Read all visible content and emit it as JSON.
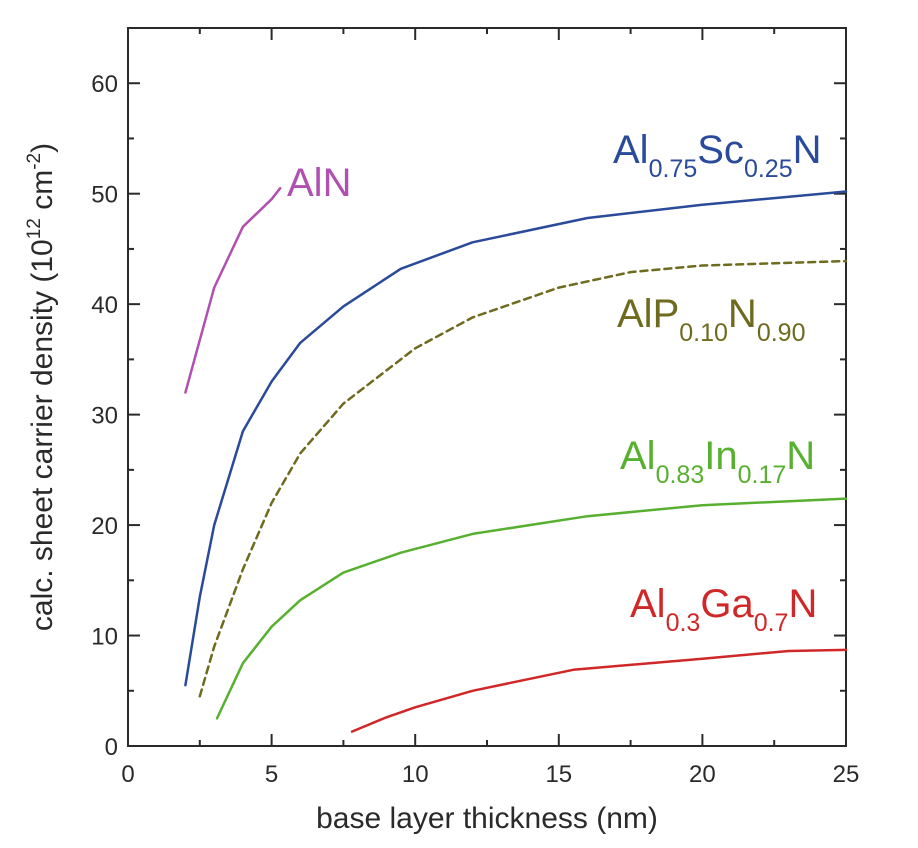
{
  "chart_data": {
    "type": "line",
    "xlabel": "base layer thickness  (nm)",
    "ylabel": {
      "text": "calc. sheet carrier density  (10",
      "exponent": "12",
      "unit": " cm",
      "unit_exponent": "-2",
      "close": ")"
    },
    "xlim": [
      0,
      25
    ],
    "ylim": [
      0,
      65
    ],
    "xticks": [
      "0",
      "5",
      "10",
      "15",
      "20",
      "25"
    ],
    "yticks": [
      "0",
      "10",
      "20",
      "30",
      "40",
      "50",
      "60"
    ],
    "grid": false,
    "legend": "inline labels",
    "series": [
      {
        "name": "AlN",
        "label_parts": [
          {
            "t": "AlN",
            "sub": false
          }
        ],
        "color": "#b050b0",
        "dash": false,
        "x": [
          2.0,
          3.0,
          4.0,
          5.0,
          5.3
        ],
        "y": [
          32.0,
          41.5,
          47.0,
          49.5,
          50.5
        ]
      },
      {
        "name": "Al0.75Sc0.25N",
        "label_parts": [
          {
            "t": "Al",
            "sub": false
          },
          {
            "t": "0.75",
            "sub": true
          },
          {
            "t": "Sc",
            "sub": false
          },
          {
            "t": "0.25",
            "sub": true
          },
          {
            "t": "N",
            "sub": false
          }
        ],
        "color": "#2a4a9a",
        "dash": false,
        "x": [
          2.0,
          2.5,
          3.0,
          4.0,
          5.0,
          6.0,
          7.5,
          9.5,
          12.0,
          16.0,
          20.0,
          25.0
        ],
        "y": [
          5.5,
          13.5,
          20.0,
          28.5,
          33.0,
          36.5,
          39.8,
          43.2,
          45.6,
          47.8,
          49.0,
          50.2
        ]
      },
      {
        "name": "AlP0.10N0.90",
        "label_parts": [
          {
            "t": "AlP",
            "sub": false
          },
          {
            "t": "0.10",
            "sub": true
          },
          {
            "t": "N",
            "sub": false
          },
          {
            "t": "0.90",
            "sub": true
          }
        ],
        "color": "#6e6a1e",
        "dash": true,
        "x": [
          2.5,
          3.0,
          4.0,
          5.0,
          6.0,
          7.5,
          10.0,
          12.0,
          15.0,
          17.5,
          20.0,
          25.0
        ],
        "y": [
          4.5,
          9.0,
          16.0,
          22.0,
          26.5,
          31.0,
          36.0,
          38.8,
          41.5,
          42.9,
          43.5,
          43.9
        ]
      },
      {
        "name": "Al0.83In0.17N",
        "label_parts": [
          {
            "t": "Al",
            "sub": false
          },
          {
            "t": "0.83",
            "sub": true
          },
          {
            "t": "In",
            "sub": false
          },
          {
            "t": "0.17",
            "sub": true
          },
          {
            "t": "N",
            "sub": false
          }
        ],
        "color": "#58b030",
        "dash": false,
        "x": [
          3.1,
          4.0,
          5.0,
          6.0,
          7.5,
          9.5,
          12.0,
          16.0,
          20.0,
          25.0
        ],
        "y": [
          2.5,
          7.5,
          10.8,
          13.2,
          15.7,
          17.5,
          19.2,
          20.8,
          21.8,
          22.4
        ]
      },
      {
        "name": "Al0.3Ga0.7N",
        "label_parts": [
          {
            "t": "Al",
            "sub": false
          },
          {
            "t": "0.3",
            "sub": true
          },
          {
            "t": "Ga",
            "sub": false
          },
          {
            "t": "0.7",
            "sub": true
          },
          {
            "t": "N",
            "sub": false
          }
        ],
        "color": "#d02828",
        "dash": false,
        "x": [
          7.8,
          9.0,
          10.0,
          12.0,
          15.5,
          20.0,
          23.0,
          25.0
        ],
        "y": [
          1.3,
          2.6,
          3.5,
          5.0,
          6.9,
          7.9,
          8.6,
          8.7
        ]
      }
    ]
  }
}
